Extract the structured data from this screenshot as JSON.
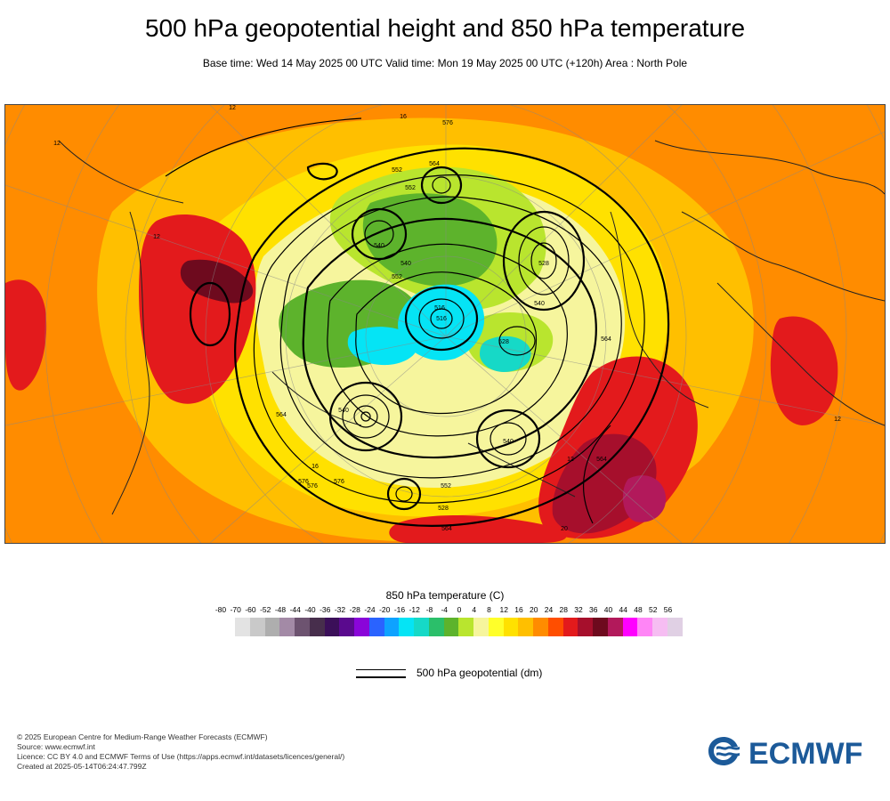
{
  "title": "500 hPa geopotential height and 850 hPa temperature",
  "subtitle": "Base time: Wed 14 May 2025 00 UTC Valid time: Mon 19 May 2025 00 UTC (+120h) Area : North Pole",
  "legend": {
    "title": "850 hPa temperature (C)",
    "levels": [
      "-80",
      "-70",
      "-60",
      "-52",
      "-48",
      "-44",
      "-40",
      "-36",
      "-32",
      "-28",
      "-24",
      "-20",
      "-16",
      "-12",
      "-8",
      "-4",
      "0",
      "4",
      "8",
      "12",
      "16",
      "20",
      "24",
      "28",
      "32",
      "36",
      "40",
      "44",
      "48",
      "52",
      "56"
    ],
    "colors": [
      "#e3e3e3",
      "#c9c9c9",
      "#aeaeae",
      "#a38aa6",
      "#6d5370",
      "#472e4c",
      "#3b0f59",
      "#5a0a8e",
      "#8a05d9",
      "#2a63ff",
      "#0ea2ff",
      "#05e4f5",
      "#16d9c7",
      "#2bbf6a",
      "#5db32c",
      "#b9e52e",
      "#f6f59d",
      "#ffff2a",
      "#ffe100",
      "#ffbf00",
      "#ff8c00",
      "#ff4e00",
      "#e31a1c",
      "#a60f2c",
      "#6e0a1e",
      "#b2195b",
      "#ff00ff",
      "#ff85f6",
      "#f6bdf2",
      "#e0d0e4"
    ],
    "colors_for": "bin between consecutive levels"
  },
  "contour_legend": {
    "label": "500 hPa geopotential (dm)"
  },
  "map": {
    "contour_labels": [
      "576",
      "564",
      "552",
      "540",
      "528",
      "516",
      "552",
      "540",
      "528",
      "540",
      "564",
      "576",
      "564",
      "552",
      "540",
      "564",
      "576",
      "552",
      "540",
      "528",
      "516",
      "564",
      "576",
      "12",
      "12",
      "12",
      "16",
      "12",
      "12",
      "16",
      "20"
    ]
  },
  "footer": {
    "lines": [
      "© 2025 European Centre for Medium-Range Weather Forecasts (ECMWF)",
      "Source: www.ecmwf.int",
      "Licence: CC BY 4.0 and ECMWF Terms of Use (https://apps.ecmwf.int/datasets/licences/general/)",
      "Created at 2025-05-14T06:24:47.799Z"
    ]
  },
  "logo": {
    "text": "ECMWF",
    "color": "#1c5a99"
  }
}
